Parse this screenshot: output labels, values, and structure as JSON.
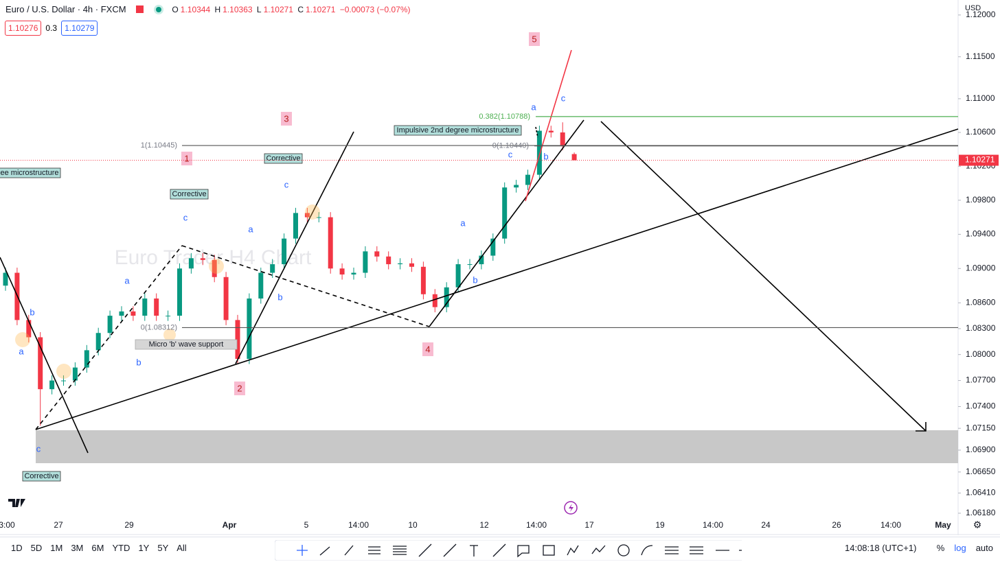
{
  "header": {
    "symbol": "Euro / U.S. Dollar · 4h · FXCM",
    "o_label": "O",
    "open": "1.10344",
    "h_label": "H",
    "high": "1.10363",
    "l_label": "L",
    "low": "1.10271",
    "c_label": "C",
    "close": "1.10271",
    "change": "−0.00073 (−0.07%)",
    "bid": "1.10276",
    "spread": "0.3",
    "ask": "1.10279"
  },
  "chart_data": {
    "type": "candlestick",
    "currency": "USD",
    "log": true,
    "ylim": [
      1.0593,
      1.1218
    ],
    "yticks": [
      {
        "value": 1.12,
        "label": "1.12000"
      },
      {
        "value": 1.115,
        "label": "1.11500"
      },
      {
        "value": 1.11,
        "label": "1.11000"
      },
      {
        "value": 1.106,
        "label": "1.10600"
      },
      {
        "value": 1.102,
        "label": "1.10200"
      },
      {
        "value": 1.098,
        "label": "1.09800"
      },
      {
        "value": 1.094,
        "label": "1.09400"
      },
      {
        "value": 1.09,
        "label": "1.09000"
      },
      {
        "value": 1.086,
        "label": "1.08600"
      },
      {
        "value": 1.083,
        "label": "1.08300"
      },
      {
        "value": 1.08,
        "label": "1.08000"
      },
      {
        "value": 1.077,
        "label": "1.07700"
      },
      {
        "value": 1.074,
        "label": "1.07400"
      },
      {
        "value": 1.0715,
        "label": "1.07150"
      },
      {
        "value": 1.069,
        "label": "1.06900"
      },
      {
        "value": 1.0665,
        "label": "1.06650"
      },
      {
        "value": 1.0641,
        "label": "1.06410"
      },
      {
        "value": 1.0618,
        "label": "1.06180"
      }
    ],
    "x_labels": [
      "3:00",
      "27",
      "29",
      "Apr",
      "5",
      "14:00",
      "10",
      "12",
      "14:00",
      "17",
      "19",
      "14:00",
      "24",
      "26",
      "14:00",
      "May"
    ],
    "open": [
      1.088,
      1.0895,
      1.084,
      1.082,
      1.076,
      1.077,
      1.077,
      1.0785,
      1.0805,
      1.0825,
      1.0845,
      1.085,
      1.0845,
      1.0865,
      1.0845,
      1.0845,
      1.09,
      1.0912,
      1.091,
      1.089,
      1.084,
      1.0795,
      1.0865,
      1.0895,
      1.0905,
      1.0935,
      1.0965,
      1.096,
      1.096,
      1.09,
      1.0893,
      1.0895,
      1.092,
      1.0914,
      1.0905,
      1.0906,
      1.0902,
      1.087,
      1.0855,
      1.0878,
      1.0905,
      1.0905,
      1.0915,
      1.0935,
      1.0995,
      1.0998,
      1.101,
      1.1062,
      1.106,
      1.10344
    ],
    "high": [
      1.0901,
      1.0901,
      1.0846,
      1.0826,
      1.0776,
      1.0776,
      1.0791,
      1.0811,
      1.0831,
      1.0851,
      1.0856,
      1.0856,
      1.0871,
      1.0871,
      1.0851,
      1.0906,
      1.0918,
      1.0918,
      1.0916,
      1.0896,
      1.0846,
      1.0871,
      1.0901,
      1.0911,
      1.0941,
      1.0971,
      1.0971,
      1.0966,
      1.0966,
      1.0906,
      1.0901,
      1.0926,
      1.0926,
      1.092,
      1.0912,
      1.0912,
      1.0908,
      1.0876,
      1.0884,
      1.0911,
      1.0911,
      1.0921,
      1.0941,
      1.1001,
      1.1004,
      1.1016,
      1.1068,
      1.1068,
      1.1072,
      1.10363
    ],
    "low": [
      1.0874,
      1.0834,
      1.0814,
      1.0718,
      1.0754,
      1.0764,
      1.0764,
      1.0779,
      1.0799,
      1.0819,
      1.0839,
      1.0839,
      1.0839,
      1.0839,
      1.0839,
      1.0839,
      1.0894,
      1.0904,
      1.0884,
      1.0834,
      1.079,
      1.0789,
      1.0859,
      1.0889,
      1.0899,
      1.0929,
      1.0954,
      1.0954,
      1.0894,
      1.0887,
      1.0887,
      1.0889,
      1.0908,
      1.0899,
      1.0899,
      1.0896,
      1.0864,
      1.0849,
      1.0849,
      1.0872,
      1.0899,
      1.0899,
      1.0909,
      1.0929,
      1.0989,
      1.0992,
      1.1004,
      1.1054,
      1.1039,
      1.10271
    ],
    "close": [
      1.0895,
      1.084,
      1.082,
      1.076,
      1.077,
      1.077,
      1.0785,
      1.0805,
      1.0825,
      1.0845,
      1.085,
      1.0845,
      1.0865,
      1.0845,
      1.0845,
      1.09,
      1.0912,
      1.091,
      1.089,
      1.084,
      1.0795,
      1.0865,
      1.0895,
      1.0905,
      1.0935,
      1.0965,
      1.096,
      1.096,
      1.09,
      1.0893,
      1.0895,
      1.092,
      1.0914,
      1.0905,
      1.0906,
      1.0902,
      1.087,
      1.0855,
      1.0878,
      1.0905,
      1.0905,
      1.0915,
      1.0935,
      1.0995,
      1.0998,
      1.101,
      1.1062,
      1.106,
      1.1045,
      1.10271
    ],
    "up_color": "#089981",
    "down_color": "#f23645",
    "last_price": {
      "value": 1.10271,
      "label": "1.10271"
    },
    "levels": [
      {
        "value": 1.10445,
        "label": "1(1.10445)"
      },
      {
        "value": 1.1044,
        "label": "0(1.10440)"
      },
      {
        "value": 1.08312,
        "label": "0(1.08312)"
      },
      {
        "value": 1.10788,
        "label": "0.382(1.10788)"
      }
    ]
  },
  "annotations": {
    "watermark": "Euro Trader H4 Chart",
    "waves": [
      "1",
      "2",
      "3",
      "4",
      "5"
    ],
    "letters": [
      "a",
      "b",
      "c",
      "a",
      "b",
      "c",
      "a",
      "b",
      "c",
      "a",
      "b",
      "c",
      "a",
      "b",
      "c"
    ],
    "boxes": [
      "ee microstructure",
      "Corrective",
      "Corrective",
      "Corrective",
      "Impulsive 2nd degree microstructure",
      "Micro 'b' wave support"
    ]
  },
  "toolbar": {
    "ranges": [
      "1D",
      "5D",
      "1M",
      "3M",
      "6M",
      "YTD",
      "1Y",
      "5Y",
      "All"
    ],
    "clock": "14:08:18 (UTC+1)",
    "percent": "%",
    "log": "log",
    "auto": "auto"
  }
}
